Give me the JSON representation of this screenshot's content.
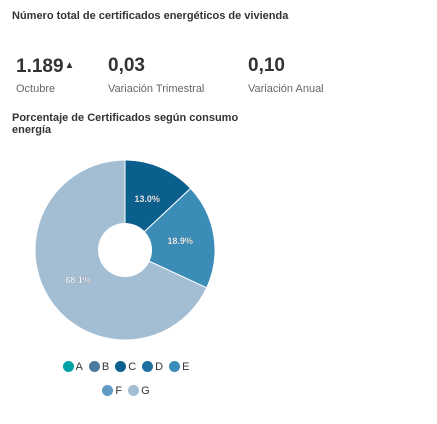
{
  "header": {
    "title": "Número total de certificados energéticos de vivienda"
  },
  "kpis": [
    {
      "value": "1.189",
      "arrow": "▲",
      "label": "Octubre"
    },
    {
      "value": "0,03",
      "label": "Variación Trimestral"
    },
    {
      "value": "0,10",
      "label": "Variación Anual"
    }
  ],
  "chart_data": {
    "type": "pie",
    "title": "Porcentaje de Certificados según consumo energía",
    "categories": [
      "A",
      "B",
      "C",
      "D",
      "E",
      "F",
      "G"
    ],
    "values": [
      0,
      0,
      13.0,
      0,
      18.9,
      0,
      68.1
    ],
    "data_labels": [
      "",
      "",
      "13.0%",
      "",
      "18.9%",
      "",
      "68.1%"
    ],
    "colors": [
      "#00a2a7",
      "#4a7aa0",
      "#0b5f8c",
      "#1e6f9f",
      "#3b8db8",
      "#5e9ac3",
      "#a3bdd3"
    ],
    "legend": "bottom"
  }
}
